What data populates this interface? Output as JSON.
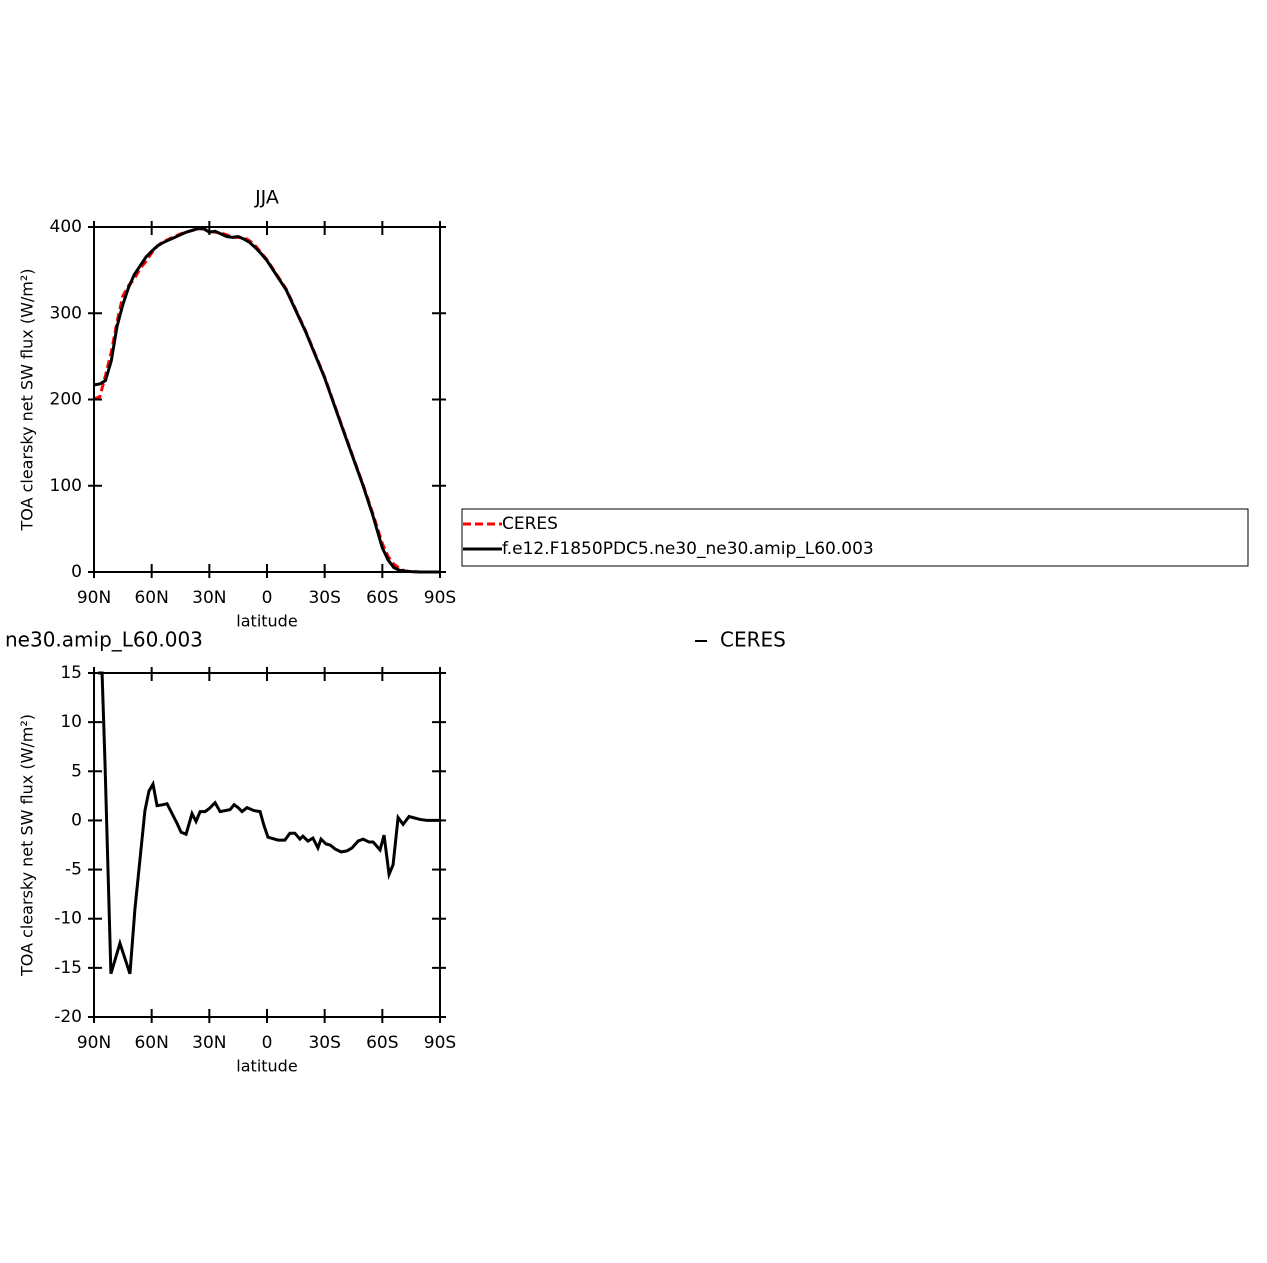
{
  "chart_data": [
    {
      "type": "line",
      "title": "JJA",
      "xlabel": "latitude",
      "ylabel": "TOA clearsky net SW flux (W/m²)",
      "xlim": [
        90,
        -90
      ],
      "xticks": [
        {
          "value": 90,
          "label": "90N"
        },
        {
          "value": 60,
          "label": "60N"
        },
        {
          "value": 30,
          "label": "30N"
        },
        0,
        {
          "value": -30,
          "label": "30S"
        },
        {
          "value": -60,
          "label": "60S"
        },
        {
          "value": -90,
          "label": "90S"
        }
      ],
      "ylim": [
        0,
        400
      ],
      "yticks": [
        0,
        100,
        200,
        300,
        400
      ],
      "x": [
        90,
        87,
        84,
        81,
        78,
        75,
        72,
        69,
        66,
        63,
        60,
        57,
        54,
        51,
        48,
        45,
        42,
        39,
        36,
        33,
        30,
        27,
        24,
        21,
        18,
        15,
        12,
        9,
        6,
        3,
        0,
        -10,
        -20,
        -30,
        -40,
        -50,
        -55,
        -60,
        -63,
        -66,
        -69,
        -72,
        -75,
        -80,
        -85,
        -90
      ],
      "series": [
        {
          "name": "CERES",
          "color": "#ff0000",
          "dashed": true,
          "values": [
            201,
            203,
            228,
            255,
            290,
            320,
            332,
            340,
            352,
            360,
            370,
            378,
            383,
            386,
            389,
            392,
            394,
            396,
            398,
            398,
            395,
            394,
            393,
            391,
            388,
            388,
            388,
            384,
            378,
            370,
            362,
            328,
            280,
            226,
            163,
            101,
            68,
            33,
            18,
            9,
            4,
            1,
            0.5,
            0,
            0,
            0
          ]
        },
        {
          "name": "f.e12.F1850PDC5.ne30_ne30.amip_L60.003",
          "color": "#000000",
          "dashed": false,
          "values": [
            217,
            218,
            222,
            245,
            285,
            310,
            330,
            345,
            355,
            365,
            372,
            378,
            382,
            385,
            388,
            391,
            394,
            396,
            398,
            398,
            394,
            395,
            392,
            389,
            388,
            389,
            386,
            382,
            376,
            369,
            361,
            327,
            279,
            225,
            162,
            100,
            66,
            28,
            14,
            5,
            2,
            1,
            0.5,
            0,
            0,
            0
          ]
        }
      ]
    },
    {
      "type": "line",
      "title": "ne30.amip_L60.003",
      "right_title": "CERES",
      "xlabel": "latitude",
      "ylabel": "TOA clearsky net SW flux (W/m²)",
      "xlim": [
        90,
        -90
      ],
      "xticks": [
        {
          "value": 90,
          "label": "90N"
        },
        {
          "value": 60,
          "label": "60N"
        },
        {
          "value": 30,
          "label": "30N"
        },
        0,
        {
          "value": -30,
          "label": "30S"
        },
        {
          "value": -60,
          "label": "60S"
        },
        {
          "value": -90,
          "label": "90S"
        }
      ],
      "ylim": [
        -20,
        15
      ],
      "yticks": [
        -20,
        -15,
        -10,
        -5,
        0,
        5,
        10,
        15
      ],
      "x": [
        87.9,
        85.8,
        84.3,
        81.2,
        76.5,
        71.3,
        68.7,
        66.1,
        63.5,
        61.4,
        59.3,
        57.2,
        54.1,
        52.0,
        46.8,
        44.7,
        42.1,
        39.0,
        36.9,
        34.8,
        32.2,
        30.1,
        27.0,
        24.4,
        21.8,
        19.2,
        17.1,
        15.0,
        13.0,
        10.4,
        6.8,
        3.6,
        1.6,
        -0.5,
        -5.7,
        -9.3,
        -11.9,
        -14.5,
        -17.1,
        -18.7,
        -21.3,
        -23.9,
        -26.5,
        -28.1,
        -30.7,
        -32.8,
        -35.4,
        -38.5,
        -41.6,
        -44.2,
        -47.4,
        -50.0,
        -53.1,
        -55.2,
        -58.8,
        -60.9,
        -63.5,
        -65.6,
        -68.2,
        -70.8,
        -73.9,
        -79.6,
        -83.3,
        -90
      ],
      "series": [
        {
          "color": "#000000",
          "dashed": false,
          "values": [
            15,
            15,
            6,
            -15.6,
            -12.5,
            -15.6,
            -9,
            -4,
            1,
            3,
            3.7,
            1.5,
            1.6,
            1.7,
            -0.3,
            -1.2,
            -1.4,
            0.7,
            -0.1,
            0.9,
            0.9,
            1.2,
            1.8,
            0.9,
            1.0,
            1.1,
            1.6,
            1.3,
            0.9,
            1.3,
            1.0,
            0.9,
            -0.5,
            -1.7,
            -2.0,
            -2.0,
            -1.3,
            -1.3,
            -1.9,
            -1.6,
            -2.1,
            -1.8,
            -2.8,
            -1.9,
            -2.4,
            -2.5,
            -2.9,
            -3.2,
            -3.1,
            -2.8,
            -2.1,
            -1.9,
            -2.2,
            -2.2,
            -3.0,
            -1.5,
            -5.5,
            -4.5,
            0.3,
            -0.4,
            0.4,
            0.1,
            0,
            0
          ]
        }
      ]
    }
  ]
}
